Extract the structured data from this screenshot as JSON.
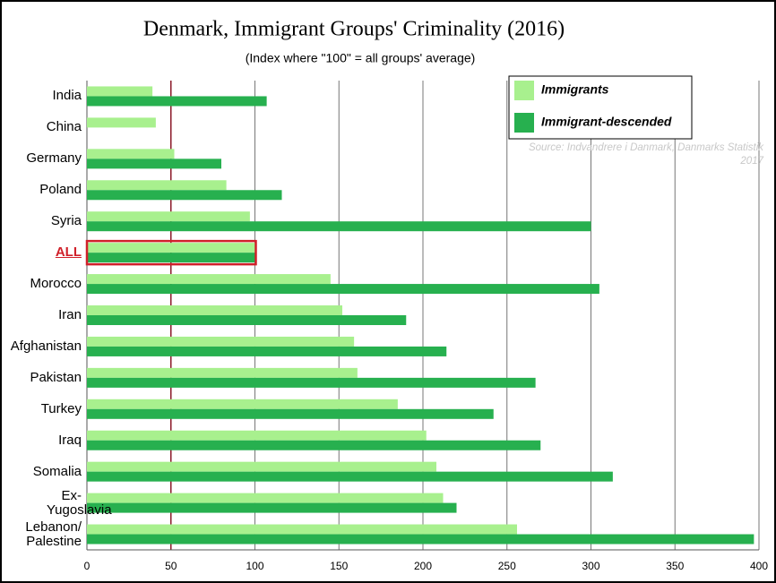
{
  "chart_data": {
    "type": "hbar",
    "title": "Denmark, Immigrant Groups' Criminality (2016)",
    "subtitle": "(Index where \"100\" = all groups' average)",
    "source": "Source: Indvandrere i Danmark, Danmarks Statistik 2017",
    "categories": [
      "India",
      "China",
      "Germany",
      "Poland",
      "Syria",
      "ALL",
      "Morocco",
      "Iran",
      "Afghanistan",
      "Pakistan",
      "Turkey",
      "Iraq",
      "Somalia",
      "Ex-Yugoslavia",
      "Lebanon/ Palestine"
    ],
    "series": [
      {
        "name": "Immigrants",
        "color": "#a8f08e",
        "values": [
          39,
          41,
          52,
          83,
          97,
          100,
          145,
          152,
          159,
          161,
          185,
          202,
          208,
          212,
          256
        ]
      },
      {
        "name": "Immigrant-descended",
        "color": "#27b04f",
        "values": [
          107,
          null,
          80,
          116,
          300,
          100,
          305,
          190,
          214,
          267,
          242,
          270,
          313,
          220,
          397
        ]
      }
    ],
    "xlim": [
      0,
      400
    ],
    "xticks": [
      0,
      50,
      100,
      150,
      200,
      250,
      300,
      350,
      400
    ],
    "grid": true,
    "reference_line": 50,
    "highlight_index": 5,
    "legend": "top-right"
  }
}
